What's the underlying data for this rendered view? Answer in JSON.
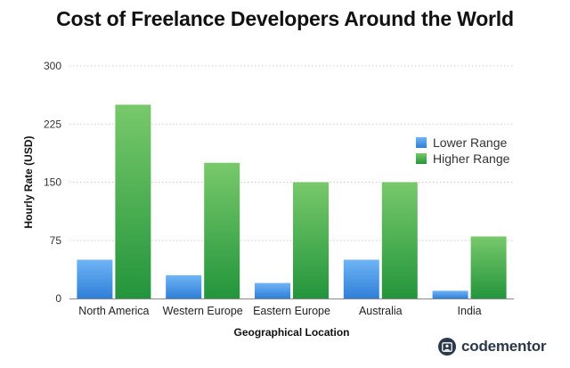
{
  "brand": {
    "name": "codementor",
    "icon": "codementor-logo-icon"
  },
  "colors": {
    "lower": "#3f8fe0",
    "lower_light": "#74b6f2",
    "higher": "#33a348",
    "higher_light": "#7fcf6e",
    "grid": "#cfcfcf",
    "axis": "#888888"
  },
  "chart_data": {
    "type": "bar",
    "title": "Cost of Freelance Developers Around the World",
    "xlabel": "Geographical Location",
    "ylabel": "Hourly Rate (USD)",
    "ylim": [
      0,
      300
    ],
    "yticks": [
      "0",
      "75",
      "150",
      "225",
      "300"
    ],
    "yticks_values": [
      0,
      75,
      150,
      225,
      300
    ],
    "grid": true,
    "legend_position": "right",
    "categories": [
      "North America",
      "Western Europe",
      "Eastern Europe",
      "Australia",
      "India"
    ],
    "series": [
      {
        "name": "Lower Range",
        "values": [
          50,
          30,
          20,
          50,
          10
        ]
      },
      {
        "name": "Higher Range",
        "values": [
          250,
          175,
          150,
          150,
          80
        ]
      }
    ]
  }
}
